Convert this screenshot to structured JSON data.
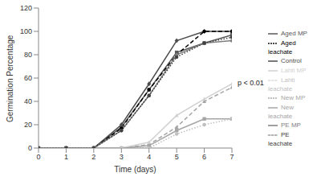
{
  "chart_data": {
    "type": "line",
    "x_label": "Time (days)",
    "y_label": "Germination Percentage",
    "annotation": "p < 0.01",
    "x": [
      0,
      1,
      2,
      3,
      4,
      5,
      6,
      7
    ],
    "xlim": [
      0,
      7
    ],
    "xticks": [
      0,
      1,
      2,
      3,
      4,
      5,
      6,
      7
    ],
    "ylim": [
      0,
      120
    ],
    "yticks": [
      0,
      20,
      40,
      60,
      80,
      100,
      120
    ],
    "grid": false,
    "legend": "right",
    "series": [
      {
        "name": "Control",
        "color": "#4d4d4d",
        "marker": "diamond",
        "line_style": "solid",
        "values": [
          0,
          0,
          0,
          20,
          55,
          92,
          100,
          100
        ]
      },
      {
        "name": "New leachate",
        "color": "#a6a6a6",
        "marker": "square",
        "line_style": "solid",
        "values": [
          0,
          0,
          0,
          0,
          2,
          15,
          25,
          25
        ]
      },
      {
        "name": "New MP",
        "color": "#a6a6a6",
        "marker": "triangle",
        "line_style": "dashed",
        "values": [
          0,
          0,
          0,
          0,
          3,
          18,
          40,
          52
        ]
      },
      {
        "name": "Aged MP",
        "color": "#595959",
        "marker": "square",
        "line_style": "solid",
        "values": [
          0,
          0,
          0,
          18,
          50,
          82,
          90,
          97
        ]
      },
      {
        "name": "Aged leachate",
        "color": "#000000",
        "marker": "circle",
        "line_style": "dashed",
        "values": [
          0,
          0,
          0,
          17,
          50,
          80,
          100,
          100
        ]
      },
      {
        "name": "Lahti MP",
        "color": "#d0d0d0",
        "marker": "triangle",
        "line_style": "solid",
        "values": [
          0,
          0,
          0,
          0,
          5,
          28,
          42,
          55
        ]
      },
      {
        "name": "Lahti leachate",
        "color": "#bfbfbf",
        "marker": "circle",
        "line_style": "dotted",
        "values": [
          0,
          0,
          0,
          0,
          0,
          12,
          20,
          25
        ]
      },
      {
        "name": "PE MP",
        "color": "#7f7f7f",
        "marker": "circle",
        "line_style": "solid",
        "values": [
          0,
          0,
          0,
          15,
          45,
          80,
          90,
          92
        ]
      },
      {
        "name": "PE leachate",
        "color": "#404040",
        "marker": "circle",
        "line_style": "dotted",
        "values": [
          0,
          0,
          0,
          15,
          45,
          78,
          90,
          95
        ]
      }
    ]
  }
}
